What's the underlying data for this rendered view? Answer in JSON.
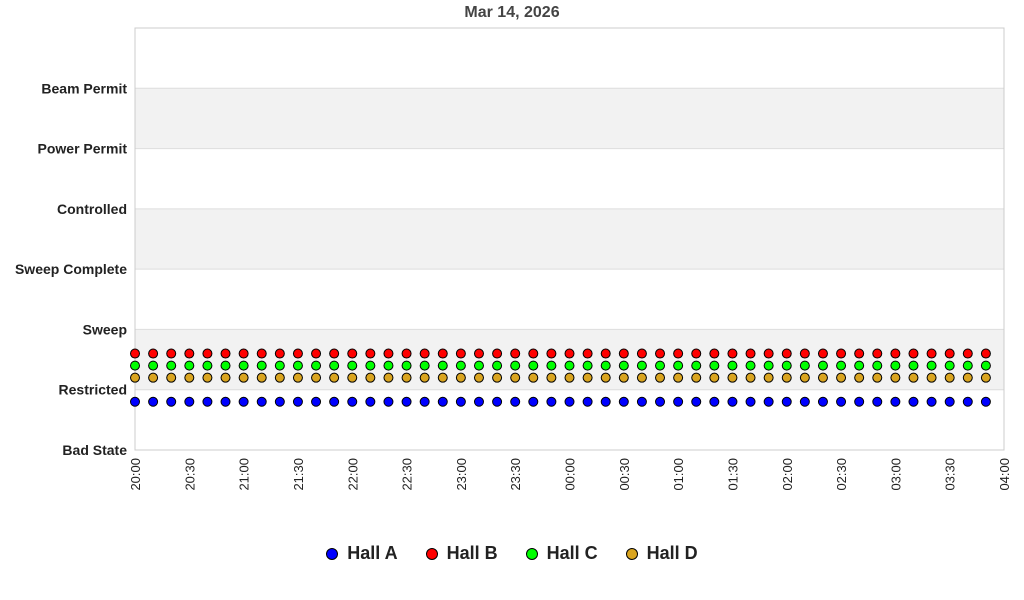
{
  "chart_data": {
    "type": "scatter",
    "title": "Mar 14, 2026",
    "xlabel": "",
    "ylabel": "",
    "y_categories": [
      "Bad State",
      "Restricted",
      "Sweep",
      "Sweep Complete",
      "Controlled",
      "Power Permit",
      "Beam Permit"
    ],
    "x_ticks": [
      "20:00",
      "20:30",
      "21:00",
      "21:30",
      "22:00",
      "22:30",
      "23:00",
      "23:30",
      "00:00",
      "00:30",
      "01:00",
      "01:30",
      "02:00",
      "02:30",
      "03:00",
      "03:30",
      "04:00"
    ],
    "x_range": [
      "20:00",
      "04:00"
    ],
    "x_sample_interval_minutes": 10,
    "x_points": [
      "20:00",
      "20:10",
      "20:20",
      "20:30",
      "20:40",
      "20:50",
      "21:00",
      "21:10",
      "21:20",
      "21:30",
      "21:40",
      "21:50",
      "22:00",
      "22:10",
      "22:20",
      "22:30",
      "22:40",
      "22:50",
      "23:00",
      "23:10",
      "23:20",
      "23:30",
      "23:40",
      "23:50",
      "00:00",
      "00:10",
      "00:20",
      "00:30",
      "00:40",
      "00:50",
      "01:00",
      "01:10",
      "01:20",
      "01:30",
      "01:40",
      "01:50",
      "02:00",
      "02:10",
      "02:20",
      "02:30",
      "02:40",
      "02:50",
      "03:00",
      "03:10",
      "03:20",
      "03:30",
      "03:40",
      "03:50"
    ],
    "grid": "alternating horizontal bands",
    "legend": "bottom",
    "series": [
      {
        "name": "Hall A",
        "color": "#0000ff",
        "state": "Restricted"
      },
      {
        "name": "Hall B",
        "color": "#ff0000",
        "state": "Restricted"
      },
      {
        "name": "Hall C",
        "color": "#00ff00",
        "state": "Restricted"
      },
      {
        "name": "Hall D",
        "color": "#daa520",
        "state": "Restricted"
      }
    ]
  }
}
